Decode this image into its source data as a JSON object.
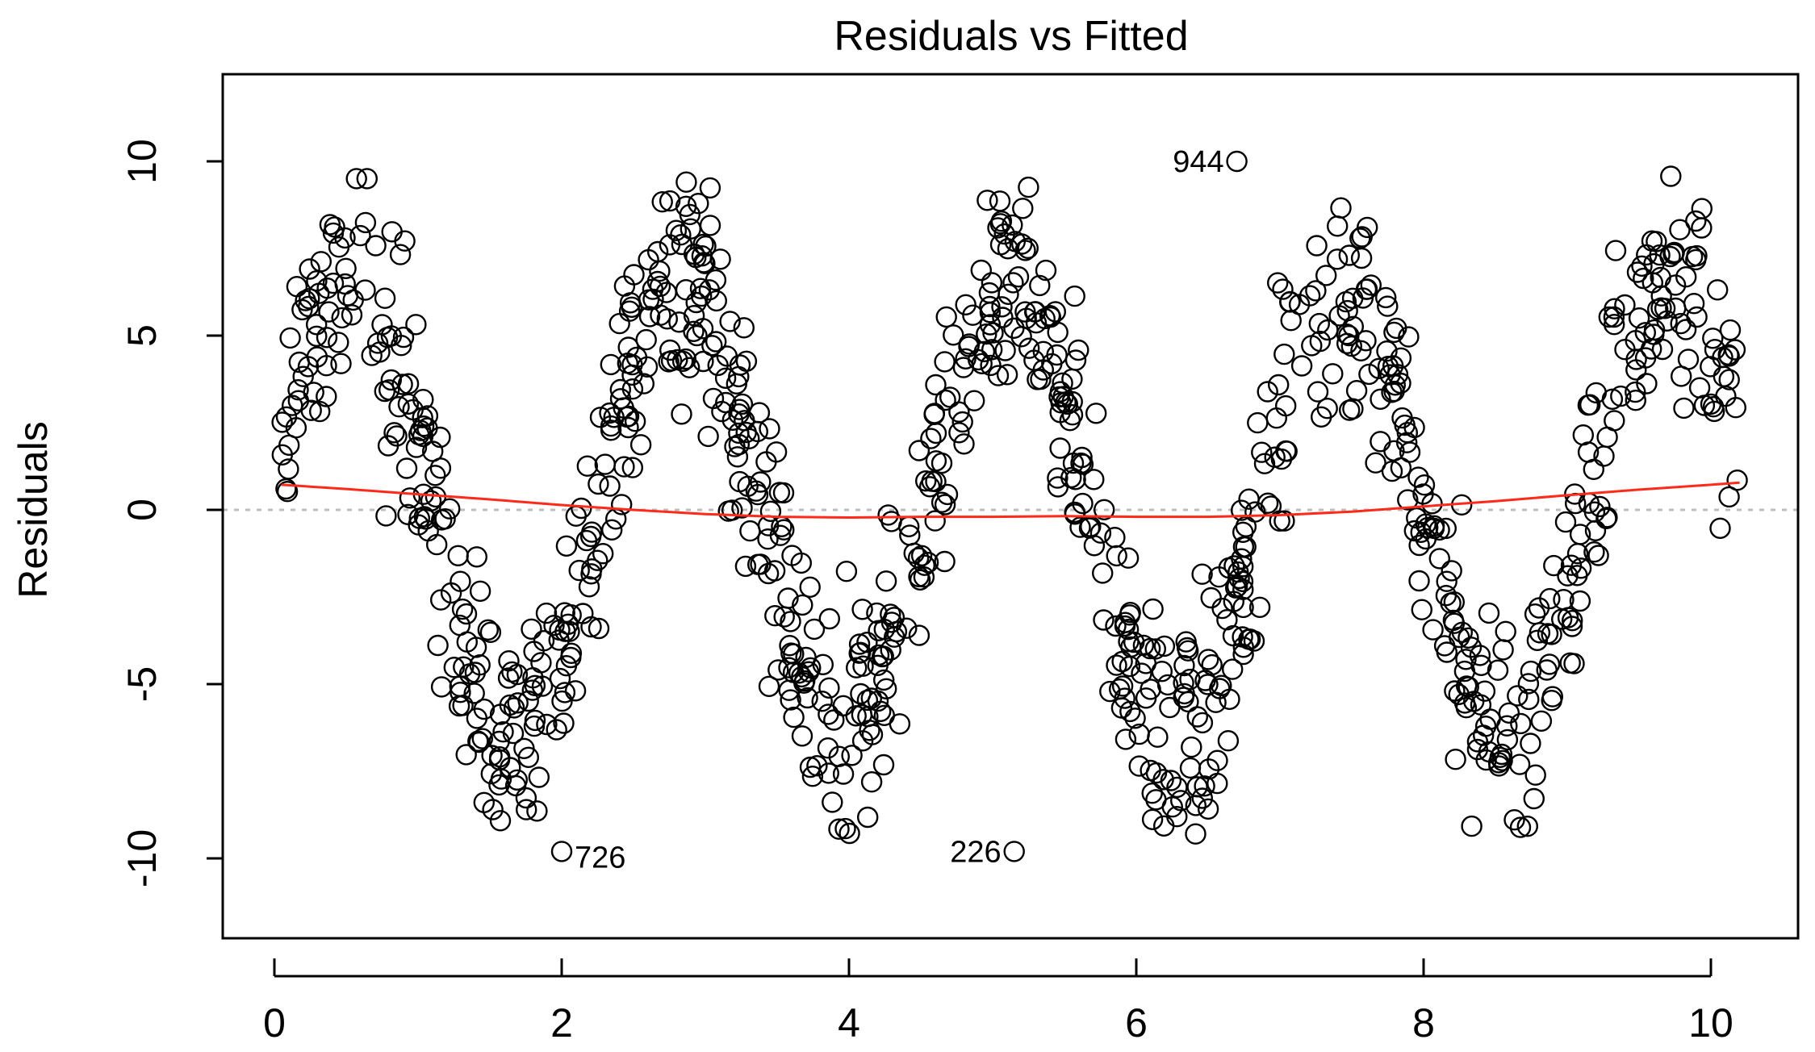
{
  "chart_data": {
    "type": "scatter",
    "title": "Residuals vs Fitted",
    "xlabel": "",
    "ylabel": "Residuals",
    "xlim": [
      -0.4,
      10.4
    ],
    "ylim": [
      -12.3,
      12.4
    ],
    "x_ticks": [
      0,
      2,
      4,
      6,
      8,
      10
    ],
    "y_ticks": [
      -10,
      -5,
      0,
      5,
      10
    ],
    "x_tick_labels": [
      "0",
      "2",
      "4",
      "6",
      "8",
      "10"
    ],
    "y_tick_labels": [
      "-10",
      "-5",
      "0",
      "5",
      "10"
    ],
    "reference_line": {
      "y": 0,
      "style": "dotted",
      "color": "#bdbdbd"
    },
    "smoother": {
      "color": "#ff2a1a",
      "x": [
        0.05,
        0.5,
        1.0,
        1.5,
        2.0,
        2.5,
        3.0,
        3.5,
        4.0,
        4.5,
        5.0,
        5.5,
        6.0,
        6.5,
        7.0,
        7.5,
        8.0,
        8.5,
        9.0,
        9.5,
        10.0,
        10.2
      ],
      "y": [
        0.72,
        0.6,
        0.45,
        0.3,
        0.14,
        0.0,
        -0.12,
        -0.2,
        -0.22,
        -0.2,
        -0.2,
        -0.18,
        -0.2,
        -0.2,
        -0.15,
        -0.05,
        0.1,
        0.25,
        0.42,
        0.58,
        0.72,
        0.78
      ]
    },
    "labeled_points": [
      {
        "x": 6.7,
        "y": 10.0,
        "label": "944",
        "side": "left"
      },
      {
        "x": 2.0,
        "y": -9.8,
        "label": "726",
        "side": "right"
      },
      {
        "x": 5.15,
        "y": -9.8,
        "label": "226",
        "side": "left"
      }
    ],
    "point_color": "#000000",
    "n_points": 1000,
    "point_pattern": "sinusoidal wave bands; residual ≈ 6.5·sin(2π·fitted/2.3) with noise"
  }
}
